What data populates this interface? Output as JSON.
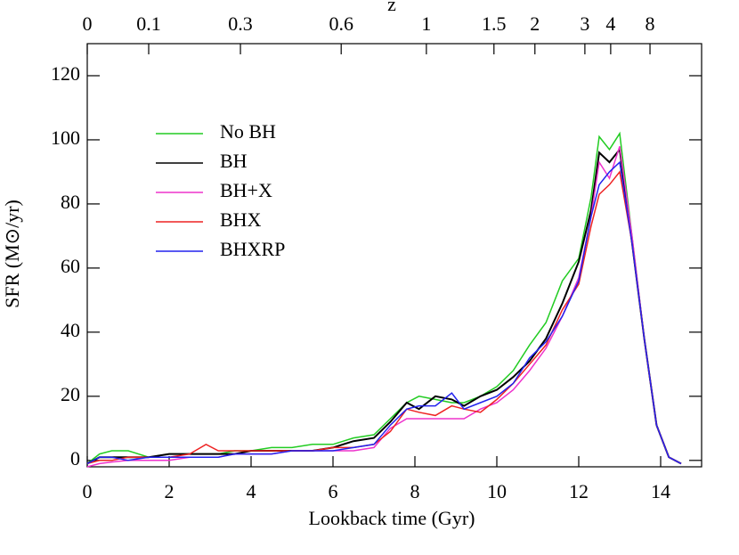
{
  "chart_data": {
    "type": "line",
    "x_label": "Lookback time (Gyr)",
    "y_label": "SFR (M⊙/yr)",
    "x2_label": "z",
    "x": [
      0,
      0.3,
      0.6,
      1,
      1.5,
      2,
      2.5,
      2.9,
      3.2,
      3.6,
      4,
      4.5,
      5,
      5.5,
      6,
      6.5,
      7,
      7.4,
      7.8,
      8.1,
      8.5,
      8.9,
      9.2,
      9.6,
      10,
      10.4,
      10.8,
      11.2,
      11.6,
      12,
      12.3,
      12.5,
      12.75,
      13,
      13.3,
      13.6,
      13.9,
      14.2,
      14.5
    ],
    "series": [
      {
        "name": "No BH",
        "color": "#22cc22",
        "values": [
          -1,
          2,
          3,
          3,
          1,
          2,
          2,
          2,
          2,
          3,
          3,
          4,
          4,
          5,
          5,
          7,
          8,
          13,
          18,
          20,
          19,
          18,
          18,
          20,
          23,
          28,
          36,
          43,
          56,
          63,
          82,
          101,
          97,
          102,
          70,
          38,
          11,
          1,
          -1
        ]
      },
      {
        "name": "BH",
        "color": "#000000",
        "values": [
          -1,
          1,
          1,
          1,
          1,
          2,
          2,
          2,
          2,
          2,
          3,
          3,
          3,
          3,
          4,
          6,
          7,
          12,
          18,
          16,
          20,
          19,
          17,
          20,
          22,
          26,
          31,
          38,
          49,
          62,
          78,
          96,
          93,
          97,
          68,
          38,
          11,
          1,
          -1
        ]
      },
      {
        "name": "BH+X",
        "color": "#ee33cc",
        "values": [
          -2,
          -1,
          -0.5,
          0,
          0,
          0,
          1,
          1,
          1,
          2,
          2,
          2,
          3,
          3,
          3,
          3,
          4,
          10,
          13,
          13,
          13,
          13,
          13,
          16,
          18,
          22,
          28,
          35,
          45,
          57,
          76,
          93,
          88,
          98,
          70,
          38,
          11,
          1,
          -1
        ]
      },
      {
        "name": "BHX",
        "color": "#ee2222",
        "values": [
          -1,
          0,
          0,
          1,
          1,
          1,
          2,
          5,
          3,
          3,
          3,
          3,
          3,
          3,
          4,
          4,
          5,
          9,
          16,
          15,
          14,
          17,
          16,
          15,
          19,
          24,
          30,
          36,
          47,
          55,
          73,
          83,
          86,
          90,
          68,
          38,
          11,
          1,
          -1
        ]
      },
      {
        "name": "BHXRP",
        "color": "#2222ee",
        "values": [
          -1,
          1,
          1,
          0,
          1,
          1,
          1,
          1,
          1,
          2,
          2,
          2,
          3,
          3,
          3,
          4,
          5,
          11,
          16,
          17,
          17,
          21,
          16,
          18,
          20,
          24,
          32,
          37,
          45,
          56,
          76,
          86,
          90,
          93,
          68,
          38,
          11,
          1,
          -1
        ]
      }
    ],
    "xlim": [
      0,
      15
    ],
    "ylim": [
      -2,
      130
    ],
    "xticks": [
      0,
      2,
      4,
      6,
      8,
      10,
      12,
      14
    ],
    "yticks": [
      0,
      20,
      40,
      60,
      80,
      100,
      120
    ],
    "x2ticks": [
      0,
      0.1,
      0.3,
      0.6,
      1,
      1.5,
      2,
      3,
      4,
      8
    ],
    "x2tick_positions": [
      0,
      1.5,
      3.74,
      6.2,
      8.28,
      9.93,
      10.93,
      12.15,
      12.78,
      13.74
    ],
    "legend": "upper left"
  }
}
